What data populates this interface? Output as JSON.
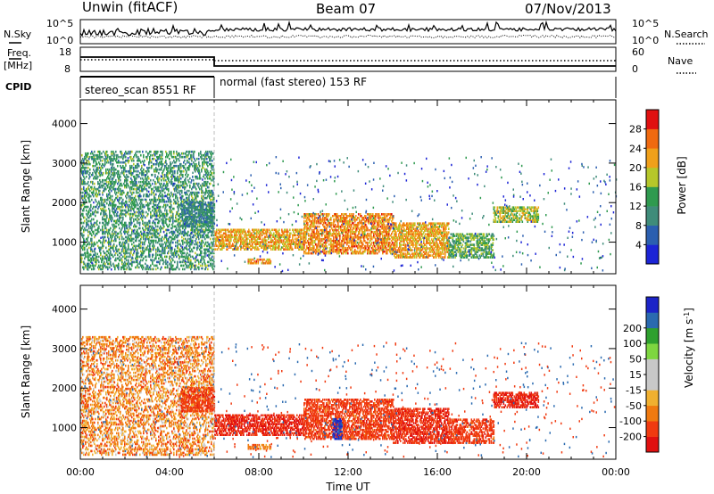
{
  "header": {
    "station": "Unwin (fitACF)",
    "beam": "Beam 07",
    "date": "07/Nov/2013"
  },
  "left_labels": {
    "nsky": "N.Sky",
    "freq_line1": "Freq.",
    "freq_line2": "[MHz]",
    "cpid": "CPID"
  },
  "right_labels": {
    "nsearch": "N.Search",
    "nave": "Nave"
  },
  "noise_panel": {
    "left_ticks": [
      "10^5",
      "10^0"
    ],
    "right_ticks": [
      "10^5",
      "10^0"
    ]
  },
  "freq_panel": {
    "left_ticks": [
      "18",
      "8"
    ],
    "right_ticks": [
      "60",
      "0"
    ]
  },
  "cpid_panel": {
    "segments": [
      "stereo_scan 8551 RF",
      "normal (fast stereo) 153 RF"
    ]
  },
  "colors": {
    "power_scale": [
      "#1c24d6",
      "#2b5fb0",
      "#3f8c7a",
      "#2f9a4f",
      "#b6c72a",
      "#f0a01a",
      "#f06a10",
      "#e01010"
    ],
    "velocity_scale": [
      "#e01010",
      "#f03a10",
      "#f07a10",
      "#f0b030",
      "#c8c8c8",
      "#c8c8c8",
      "#7ed640",
      "#2ea02e",
      "#2a6ab0",
      "#1c24c8"
    ]
  },
  "chart_data": [
    {
      "type": "heatmap",
      "panel": "power",
      "ylabel": "Slant Range [km]",
      "y_ticks": [
        "1000",
        "2000",
        "3000",
        "4000"
      ],
      "ylim": [
        200,
        4600
      ],
      "xlim": [
        "00:00",
        "24:00"
      ],
      "colorbar": {
        "label": "Power [dB]",
        "ticks": [
          "4",
          "8",
          "12",
          "16",
          "20",
          "24",
          "28"
        ],
        "range": [
          0,
          32
        ]
      },
      "scatter_regions": [
        {
          "t_start": 0.0,
          "t_end": 6.0,
          "range_min": 300,
          "range_max": 3300,
          "dominant_db": 12
        },
        {
          "t_start": 4.5,
          "t_end": 6.0,
          "range_min": 1400,
          "range_max": 2000,
          "dominant_db": 10
        },
        {
          "t_start": 6.0,
          "t_end": 10.0,
          "range_min": 800,
          "range_max": 1300,
          "dominant_db": 22
        },
        {
          "t_start": 7.5,
          "t_end": 8.5,
          "range_min": 450,
          "range_max": 550,
          "dominant_db": 24
        },
        {
          "t_start": 10.0,
          "t_end": 14.0,
          "range_min": 700,
          "range_max": 1700,
          "dominant_db": 24
        },
        {
          "t_start": 14.0,
          "t_end": 16.5,
          "range_min": 600,
          "range_max": 1500,
          "dominant_db": 22
        },
        {
          "t_start": 16.5,
          "t_end": 18.5,
          "range_min": 600,
          "range_max": 1200,
          "dominant_db": 14
        },
        {
          "t_start": 18.5,
          "t_end": 20.5,
          "range_min": 1500,
          "range_max": 1900,
          "dominant_db": 18
        }
      ]
    },
    {
      "type": "heatmap",
      "panel": "velocity",
      "ylabel": "Slant Range [km]",
      "xlabel": "Time UT",
      "x_ticks": [
        "00:00",
        "04:00",
        "08:00",
        "12:00",
        "16:00",
        "20:00",
        "00:00"
      ],
      "y_ticks": [
        "1000",
        "2000",
        "3000",
        "4000"
      ],
      "ylim": [
        200,
        4600
      ],
      "xlim": [
        "00:00",
        "24:00"
      ],
      "colorbar": {
        "label": "Velocity [m s^-1]",
        "ticks": [
          "-200",
          "-100",
          "-50",
          "-15",
          "15",
          "50",
          "100",
          "200"
        ],
        "range": [
          -250,
          250
        ]
      },
      "scatter_regions": [
        {
          "t_start": 0.0,
          "t_end": 6.0,
          "range_min": 300,
          "range_max": 3300,
          "dominant_v": -60
        },
        {
          "t_start": 4.5,
          "t_end": 6.0,
          "range_min": 1400,
          "range_max": 2000,
          "dominant_v": -150
        },
        {
          "t_start": 6.0,
          "t_end": 10.0,
          "range_min": 800,
          "range_max": 1300,
          "dominant_v": -200
        },
        {
          "t_start": 7.5,
          "t_end": 8.5,
          "range_min": 450,
          "range_max": 550,
          "dominant_v": -80
        },
        {
          "t_start": 10.0,
          "t_end": 14.0,
          "range_min": 700,
          "range_max": 1700,
          "dominant_v": -150
        },
        {
          "t_start": 11.3,
          "t_end": 11.7,
          "range_min": 700,
          "range_max": 1200,
          "dominant_v": 220
        },
        {
          "t_start": 14.0,
          "t_end": 16.5,
          "range_min": 600,
          "range_max": 1500,
          "dominant_v": -180
        },
        {
          "t_start": 16.5,
          "t_end": 18.5,
          "range_min": 600,
          "range_max": 1200,
          "dominant_v": -150
        },
        {
          "t_start": 18.5,
          "t_end": 20.5,
          "range_min": 1500,
          "range_max": 1900,
          "dominant_v": -200
        }
      ]
    }
  ]
}
